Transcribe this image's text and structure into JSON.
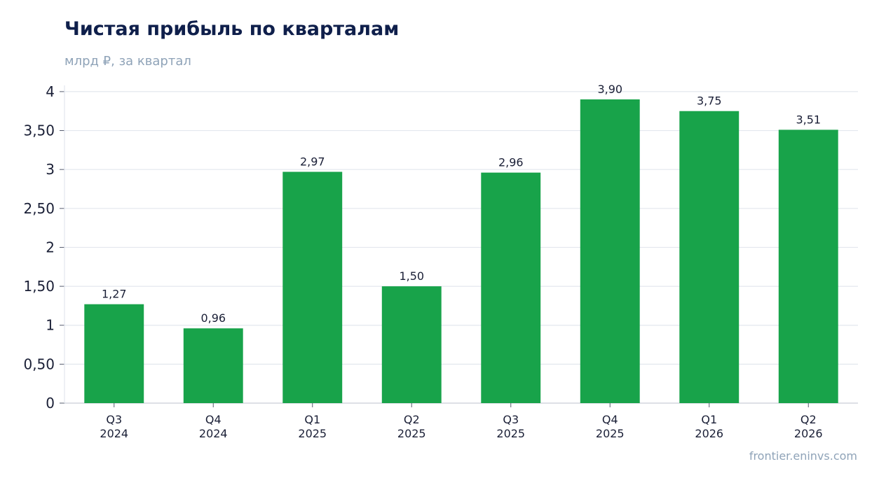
{
  "header": {
    "title": "Чистая прибыль по кварталам",
    "subtitle": "млрд ₽, за квартал"
  },
  "footer": {
    "source": "frontier.eninvs.com"
  },
  "colors": {
    "bar": "#18a34a",
    "grid": "#e3e7ee",
    "axis": "#c9ced8",
    "title": "#0f1f4b",
    "muted": "#8fa3b8"
  },
  "chart_data": {
    "type": "bar",
    "title": "Чистая прибыль по кварталам",
    "subtitle": "млрд ₽, за квартал",
    "categories": [
      [
        "Q3",
        "2024"
      ],
      [
        "Q4",
        "2024"
      ],
      [
        "Q1",
        "2025"
      ],
      [
        "Q2",
        "2025"
      ],
      [
        "Q3",
        "2025"
      ],
      [
        "Q4",
        "2025"
      ],
      [
        "Q1",
        "2026"
      ],
      [
        "Q2",
        "2026"
      ]
    ],
    "values": [
      1.27,
      0.96,
      2.97,
      1.5,
      2.96,
      3.9,
      3.75,
      3.51
    ],
    "value_labels": [
      "1,27",
      "0,96",
      "2,97",
      "1,50",
      "2,96",
      "3,90",
      "3,75",
      "3,51"
    ],
    "y_ticks": [
      0,
      0.5,
      1,
      1.5,
      2,
      2.5,
      3,
      3.5,
      4
    ],
    "y_tick_labels": [
      "0",
      "0,50",
      "1",
      "1,50",
      "2",
      "2,50",
      "3",
      "3,50",
      "4"
    ],
    "ylim": [
      0,
      4.08
    ],
    "grid": true,
    "legend": "none"
  }
}
